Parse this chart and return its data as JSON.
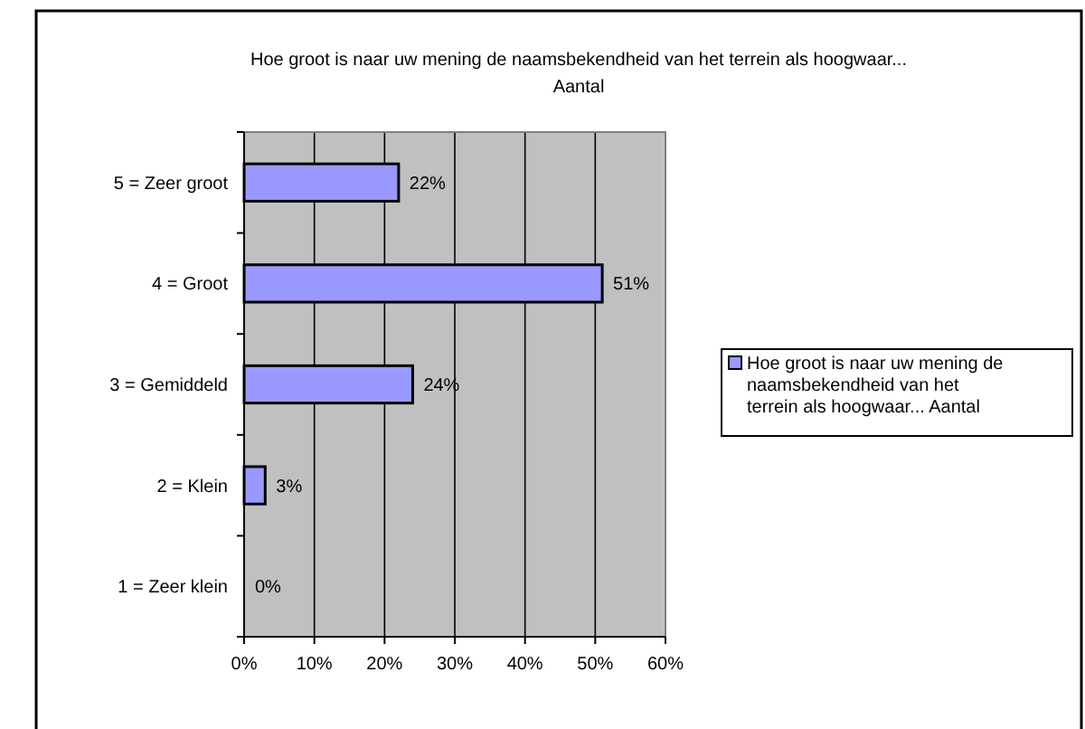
{
  "chart_data": {
    "type": "bar",
    "orientation": "horizontal",
    "title": "Hoe groot is naar uw mening de naamsbekendheid van het terrein als hoogwaar...\nAantal",
    "categories": [
      "5 = Zeer groot",
      "4 = Groot",
      "3 = Gemiddeld",
      "2 = Klein",
      "1 = Zeer klein"
    ],
    "series": [
      {
        "name": "Hoe groot is naar uw mening de naamsbekendheid van het terrein als hoogwaar... Aantal",
        "color": "#9999ff",
        "values": [
          22,
          51,
          24,
          3,
          0
        ],
        "value_labels": [
          "22%",
          "51%",
          "24%",
          "3%",
          "0%"
        ]
      }
    ],
    "xlim": [
      0,
      60
    ],
    "xticks": [
      {
        "value": 0,
        "label": "0%"
      },
      {
        "value": 10,
        "label": "10%"
      },
      {
        "value": 20,
        "label": "20%"
      },
      {
        "value": 30,
        "label": "30%"
      },
      {
        "value": 40,
        "label": "40%"
      },
      {
        "value": 50,
        "label": "50%"
      },
      {
        "value": 60,
        "label": "60%"
      }
    ],
    "grid": "x",
    "legend": "right"
  }
}
